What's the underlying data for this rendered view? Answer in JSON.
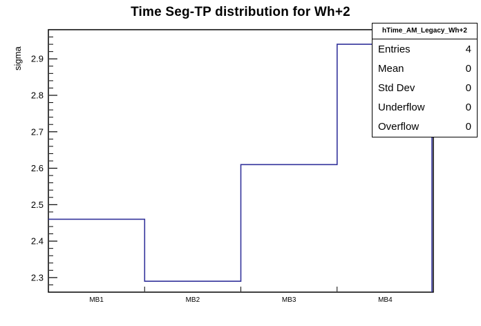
{
  "chart_data": {
    "type": "step-histogram",
    "title": "Time Seg-TP distribution for Wh+2",
    "xlabel": "",
    "ylabel": "sigma",
    "categories": [
      "MB1",
      "MB2",
      "MB3",
      "MB4"
    ],
    "values": [
      2.46,
      2.29,
      2.61,
      2.94
    ],
    "ylim": [
      2.26,
      2.98
    ],
    "yticks": [
      2.3,
      2.4,
      2.5,
      2.6,
      2.7,
      2.8,
      2.9
    ],
    "minor_tick_step": 0.02,
    "grid": false,
    "legend_position": "none",
    "line_color": "#32329b",
    "axis_color": "#000000"
  },
  "stats": {
    "header": "hTime_AM_Legacy_Wh+2",
    "rows": [
      {
        "label": "Entries",
        "value": "4"
      },
      {
        "label": "Mean",
        "value": "0"
      },
      {
        "label": "Std Dev",
        "value": "0"
      },
      {
        "label": "Underflow",
        "value": "0"
      },
      {
        "label": "Overflow",
        "value": "0"
      }
    ]
  }
}
